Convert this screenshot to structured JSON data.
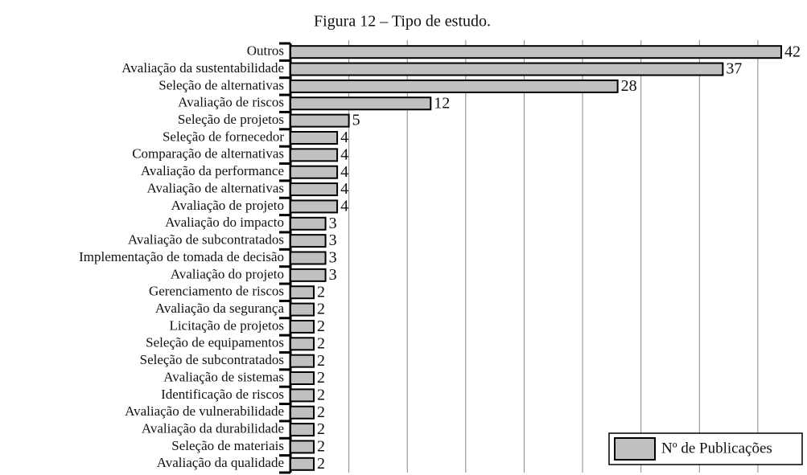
{
  "chart_data": {
    "type": "bar",
    "orientation": "horizontal",
    "title": "Figura 12 – Tipo de estudo.",
    "categories": [
      "Outros",
      "Avaliação da sustentabilidade",
      "Seleção de alternativas",
      "Avaliação de riscos",
      "Seleção de projetos",
      "Seleção de fornecedor",
      "Comparação de alternativas",
      "Avaliação da performance",
      "Avaliação de alternativas",
      "Avaliação de projeto",
      "Avaliação do impacto",
      "Avaliação de subcontratados",
      "Implementação de tomada de decisão",
      "Avaliação do projeto",
      "Gerenciamento de riscos",
      "Avaliação da segurança",
      "Licitação de projetos",
      "Seleção de equipamentos",
      "Seleção de subcontratados",
      "Avaliação de sistemas",
      "Identificação de riscos",
      "Avaliação de vulnerabilidade",
      "Avaliação da durabilidade",
      "Seleção de materiais",
      "Avaliação da qualidade"
    ],
    "series": [
      {
        "name": "Nº de Publicações",
        "color": "#c0c0c0",
        "values": [
          42,
          37,
          28,
          12,
          5,
          4,
          4,
          4,
          4,
          4,
          3,
          3,
          3,
          3,
          2,
          2,
          2,
          2,
          2,
          2,
          2,
          2,
          2,
          2,
          2
        ]
      }
    ],
    "xlim": [
      0,
      44
    ],
    "xticks": [
      5,
      10,
      15,
      20,
      25,
      30,
      35,
      40
    ],
    "grid": true,
    "legend": "lower right"
  }
}
